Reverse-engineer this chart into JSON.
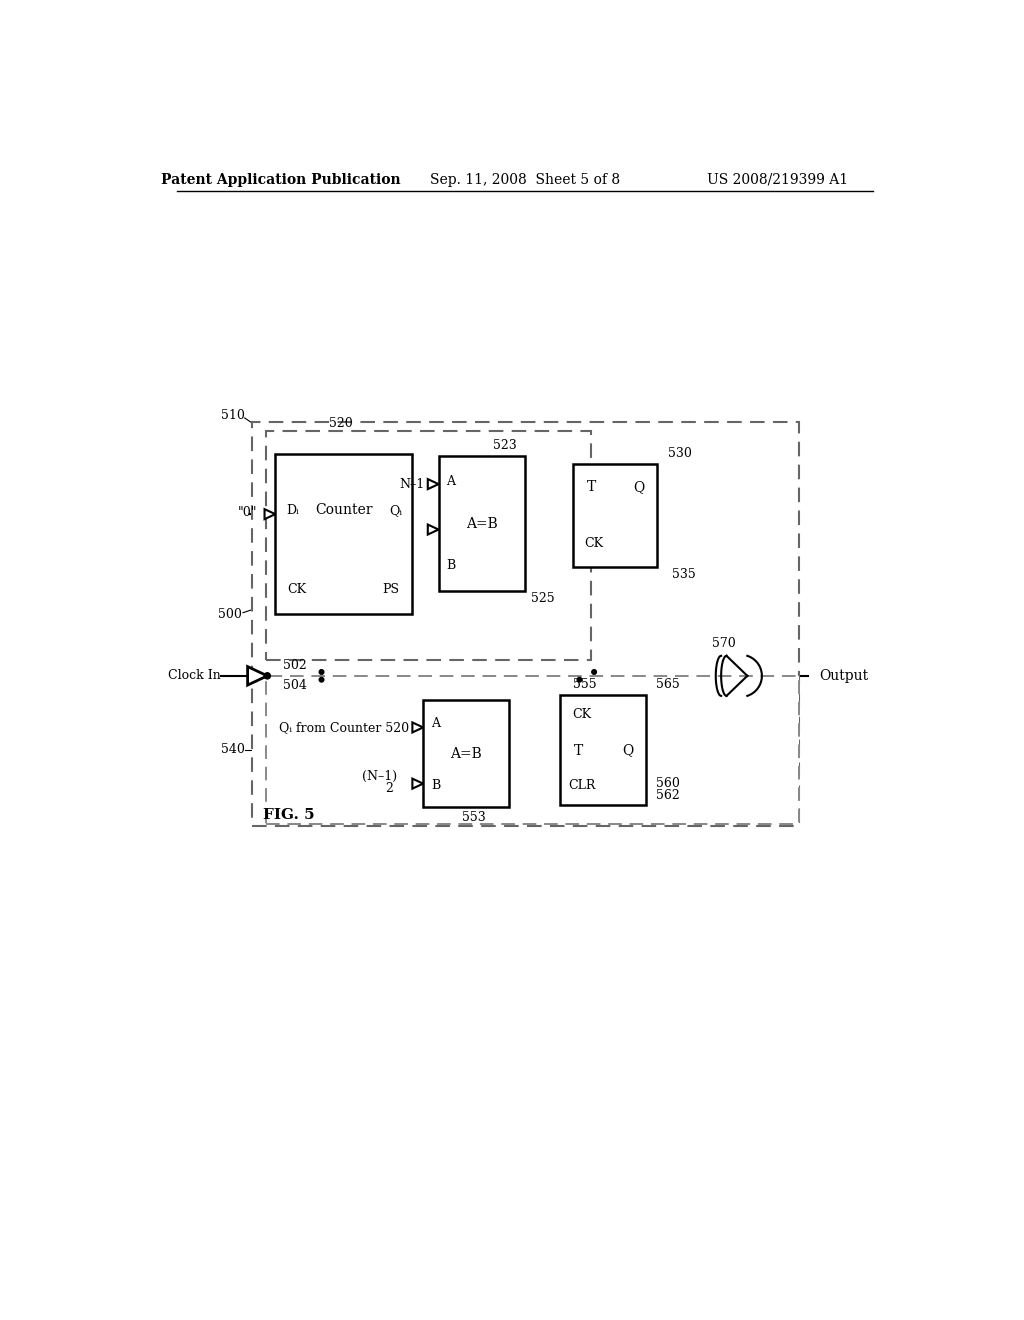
{
  "header_left": "Patent Application Publication",
  "header_center": "Sep. 11, 2008  Sheet 5 of 8",
  "header_right": "US 2008/219399 A1",
  "fig_label": "FIG. 5",
  "bg_color": "#ffffff"
}
